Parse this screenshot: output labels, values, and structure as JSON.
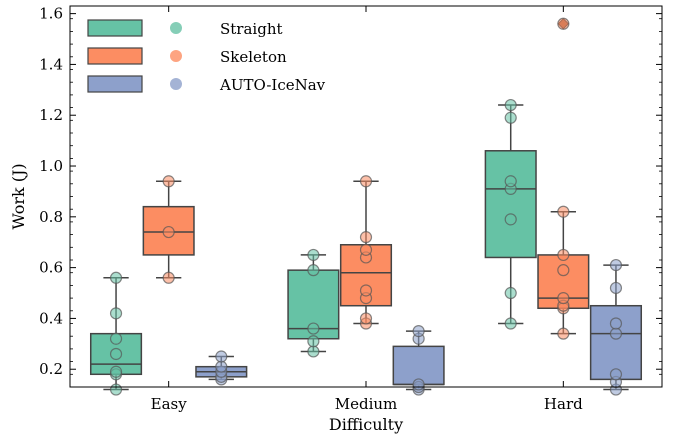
{
  "chart_data": {
    "type": "box",
    "xlabel": "Difficulty",
    "ylabel": "Work (J)",
    "ylim": [
      0.13,
      1.63
    ],
    "yticks": [
      "0.2",
      "0.4",
      "0.6",
      "0.8",
      "1.0",
      "1.2",
      "1.4",
      "1.6"
    ],
    "categories": [
      "Easy",
      "Medium",
      "Hard"
    ],
    "legend": {
      "placement": "top-left"
    },
    "grid": false,
    "series": [
      {
        "name": "Straight",
        "color": "#66c2a5",
        "boxes": [
          {
            "q1": 0.18,
            "median": 0.22,
            "q3": 0.34,
            "whisker_low": 0.12,
            "whisker_high": 0.56,
            "outliers": [],
            "points": [
              0.12,
              0.18,
              0.19,
              0.26,
              0.32,
              0.42,
              0.56
            ]
          },
          {
            "q1": 0.32,
            "median": 0.36,
            "q3": 0.59,
            "whisker_low": 0.27,
            "whisker_high": 0.65,
            "outliers": [],
            "points": [
              0.27,
              0.31,
              0.36,
              0.59,
              0.65
            ]
          },
          {
            "q1": 0.64,
            "median": 0.91,
            "q3": 1.06,
            "whisker_low": 0.38,
            "whisker_high": 1.24,
            "outliers": [],
            "points": [
              0.38,
              0.5,
              0.79,
              0.91,
              0.94,
              1.19,
              1.24
            ]
          }
        ]
      },
      {
        "name": "Skeleton",
        "color": "#fc8d62",
        "boxes": [
          {
            "q1": 0.65,
            "median": 0.74,
            "q3": 0.84,
            "whisker_low": 0.56,
            "whisker_high": 0.94,
            "outliers": [],
            "points": [
              0.56,
              0.74,
              0.94
            ]
          },
          {
            "q1": 0.45,
            "median": 0.58,
            "q3": 0.69,
            "whisker_low": 0.38,
            "whisker_high": 0.94,
            "outliers": [],
            "points": [
              0.38,
              0.4,
              0.48,
              0.51,
              0.64,
              0.67,
              0.72,
              0.94
            ]
          },
          {
            "q1": 0.44,
            "median": 0.48,
            "q3": 0.65,
            "whisker_low": 0.34,
            "whisker_high": 0.82,
            "outliers": [
              1.56
            ],
            "points": [
              0.34,
              0.44,
              0.45,
              0.48,
              0.59,
              0.65,
              0.82,
              1.56
            ]
          }
        ]
      },
      {
        "name": "AUTO-IceNav",
        "color": "#8da0cb",
        "boxes": [
          {
            "q1": 0.17,
            "median": 0.19,
            "q3": 0.21,
            "whisker_low": 0.16,
            "whisker_high": 0.25,
            "outliers": [],
            "points": [
              0.16,
              0.17,
              0.19,
              0.21,
              0.25
            ]
          },
          {
            "q1": 0.14,
            "median": 0.14,
            "q3": 0.29,
            "whisker_low": 0.12,
            "whisker_high": 0.35,
            "outliers": [],
            "points": [
              0.12,
              0.13,
              0.14,
              0.32,
              0.35
            ]
          },
          {
            "q1": 0.16,
            "median": 0.34,
            "q3": 0.45,
            "whisker_low": 0.12,
            "whisker_high": 0.61,
            "outliers": [],
            "points": [
              0.12,
              0.15,
              0.18,
              0.34,
              0.38,
              0.52,
              0.61
            ]
          }
        ]
      }
    ]
  }
}
